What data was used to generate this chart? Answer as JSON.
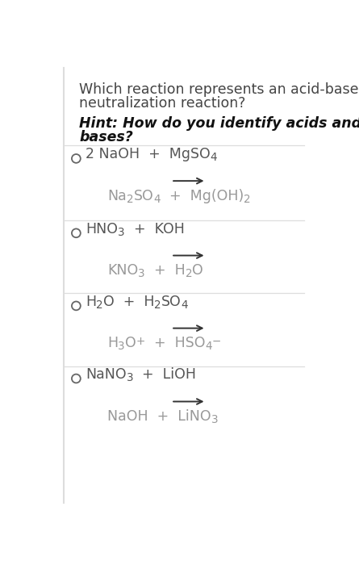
{
  "background_color": "#ffffff",
  "text_color": "#444444",
  "hint_color": "#111111",
  "light_color": "#999999",
  "line_color": "#dddddd",
  "circle_color": "#666666",
  "arrow_color": "#333333",
  "title_line1": "Which reaction represents an acid-base",
  "title_line2": "neutralization reaction?",
  "hint_line1": "Hint: How do you identify acids and",
  "hint_line2": "bases?",
  "options": [
    {
      "reactant_segs": [
        [
          "2 NaOH  +  MgSO",
          "n"
        ],
        [
          "4",
          "s"
        ]
      ],
      "product_segs": [
        [
          "Na",
          "n"
        ],
        [
          "2",
          "s"
        ],
        [
          "SO",
          "n"
        ],
        [
          "4",
          "s"
        ],
        [
          "  +  Mg(OH)",
          "n"
        ],
        [
          "2",
          "s"
        ]
      ]
    },
    {
      "reactant_segs": [
        [
          "HNO",
          "n"
        ],
        [
          "3",
          "s"
        ],
        [
          "  +  KOH",
          "n"
        ]
      ],
      "product_segs": [
        [
          "KNO",
          "n"
        ],
        [
          "3",
          "s"
        ],
        [
          "  +  H",
          "n"
        ],
        [
          "2",
          "s"
        ],
        [
          "O",
          "n"
        ]
      ]
    },
    {
      "reactant_segs": [
        [
          "H",
          "n"
        ],
        [
          "2",
          "s"
        ],
        [
          "O  +  H",
          "n"
        ],
        [
          "2",
          "s"
        ],
        [
          "SO",
          "n"
        ],
        [
          "4",
          "s"
        ]
      ],
      "product_segs": [
        [
          "H",
          "n"
        ],
        [
          "3",
          "s"
        ],
        [
          "O",
          "n"
        ],
        [
          "+",
          "p"
        ],
        [
          "  +  HSO",
          "n"
        ],
        [
          "4",
          "s"
        ],
        [
          "−",
          "p"
        ]
      ]
    },
    {
      "reactant_segs": [
        [
          "NaNO",
          "n"
        ],
        [
          "3",
          "s"
        ],
        [
          "  +  LiOH",
          "n"
        ]
      ],
      "product_segs": [
        [
          "NaOH  +  LiNO",
          "n"
        ],
        [
          "3",
          "s"
        ]
      ]
    }
  ]
}
